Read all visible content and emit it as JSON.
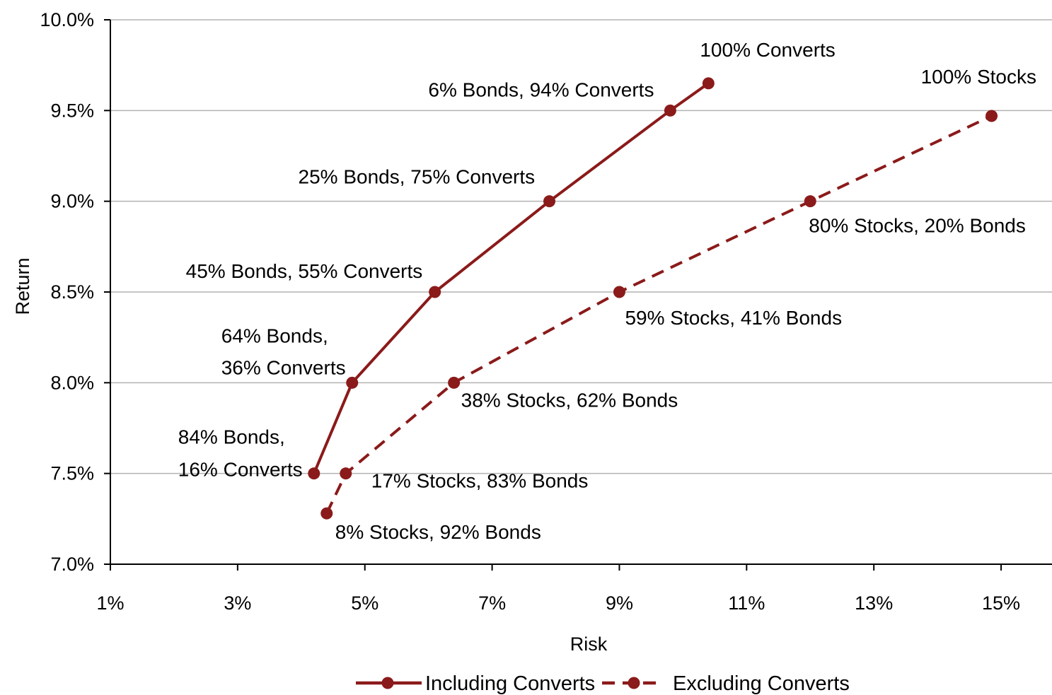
{
  "chart_data": {
    "type": "line",
    "title": "",
    "xlabel": "Risk",
    "ylabel": "Return",
    "xlim": [
      1,
      15.8
    ],
    "ylim": [
      7.0,
      10.0
    ],
    "x_ticks": [
      1,
      3,
      5,
      7,
      9,
      11,
      13,
      15
    ],
    "x_tick_labels": [
      "1%",
      "3%",
      "5%",
      "7%",
      "9%",
      "11%",
      "13%",
      "15%"
    ],
    "y_ticks": [
      7.0,
      7.5,
      8.0,
      8.5,
      9.0,
      9.5,
      10.0
    ],
    "y_tick_labels": [
      "7.0%",
      "7.5%",
      "8.0%",
      "8.5%",
      "9.0%",
      "9.5%",
      "10.0%"
    ],
    "grid": "horizontal",
    "legend_position": "bottom",
    "line_color": "#8b1a1a",
    "series": [
      {
        "name": "Including Converts",
        "style": "solid",
        "points": [
          {
            "x": 4.2,
            "y": 7.5,
            "label": [
              "84% Bonds,",
              "16% Converts"
            ]
          },
          {
            "x": 4.8,
            "y": 8.0,
            "label": [
              "64% Bonds,",
              "36% Converts"
            ]
          },
          {
            "x": 6.1,
            "y": 8.5,
            "label": [
              "45% Bonds, 55% Converts"
            ]
          },
          {
            "x": 7.9,
            "y": 9.0,
            "label": [
              "25% Bonds, 75% Converts"
            ]
          },
          {
            "x": 9.8,
            "y": 9.5,
            "label": [
              "6% Bonds, 94% Converts"
            ]
          },
          {
            "x": 10.4,
            "y": 9.65,
            "label": [
              "100% Converts"
            ]
          }
        ]
      },
      {
        "name": "Excluding Converts",
        "style": "dashed",
        "points": [
          {
            "x": 4.4,
            "y": 7.28,
            "label": [
              "8% Stocks, 92% Bonds"
            ]
          },
          {
            "x": 4.7,
            "y": 7.5,
            "label": [
              "17% Stocks, 83% Bonds"
            ]
          },
          {
            "x": 6.4,
            "y": 8.0,
            "label": [
              "38% Stocks, 62% Bonds"
            ]
          },
          {
            "x": 9.0,
            "y": 8.5,
            "label": [
              "59% Stocks, 41% Bonds"
            ]
          },
          {
            "x": 12.0,
            "y": 9.0,
            "label": [
              "80% Stocks, 20% Bonds"
            ]
          },
          {
            "x": 14.85,
            "y": 9.47,
            "label": [
              "100% Stocks"
            ]
          }
        ]
      }
    ]
  }
}
